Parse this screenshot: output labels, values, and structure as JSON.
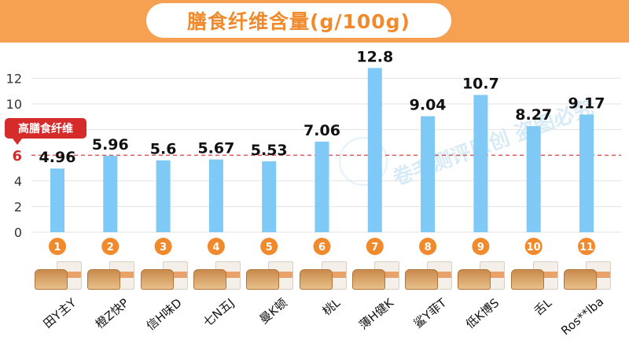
{
  "title": "膳食纤维含量(g/100g)",
  "reference_tag": "高膳食纤维",
  "watermark": "卷毛测评原创 盗图必究",
  "colors": {
    "accent": "#f6a052",
    "bar": "#7ec9f5",
    "badge": "#f08a2c",
    "reference": "#d52b2b"
  },
  "chart_data": {
    "type": "bar",
    "title": "膳食纤维含量(g/100g)",
    "categories": [
      "田Y主Y",
      "橙Z快P",
      "信H味D",
      "七N五J",
      "曼K顿",
      "桃L",
      "薄H健K",
      "鲨Y菲T",
      "低K博S",
      "舌L",
      "Ros**lba"
    ],
    "ranks": [
      "1",
      "2",
      "3",
      "4",
      "5",
      "6",
      "7",
      "8",
      "9",
      "10",
      "11"
    ],
    "values": [
      4.96,
      5.96,
      5.6,
      5.67,
      5.53,
      7.06,
      12.8,
      9.04,
      10.7,
      8.27,
      9.17
    ],
    "value_labels": [
      "4.96",
      "5.96",
      "5.6",
      "5.67",
      "5.53",
      "7.06",
      "12.8",
      "9.04",
      "10.7",
      "8.27",
      "9.17"
    ],
    "yticks": [
      "0",
      "2",
      "4",
      "6",
      "8",
      "10",
      "12"
    ],
    "ylim": [
      0,
      13.5
    ],
    "reference_line": {
      "value": 6,
      "label": "6"
    },
    "grid": true,
    "xlabel": "",
    "ylabel": ""
  }
}
